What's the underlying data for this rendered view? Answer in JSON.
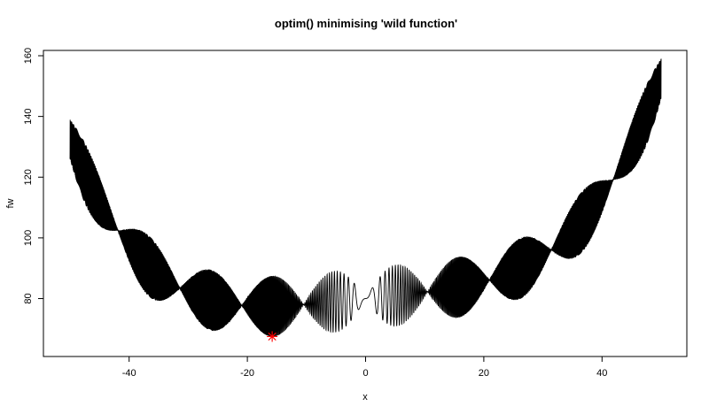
{
  "chart_data": {
    "type": "line",
    "title": "optim() minimising 'wild function'",
    "xlabel": "x",
    "ylabel": "fw",
    "xlim": [
      -50,
      50
    ],
    "ylim": [
      65,
      160
    ],
    "x_ticks": [
      -40,
      -20,
      0,
      20,
      40
    ],
    "y_ticks": [
      80,
      100,
      120,
      140,
      160
    ],
    "x_tick_labels": [
      "-40",
      "-20",
      "0",
      "20",
      "40"
    ],
    "y_tick_labels": [
      "80",
      "100",
      "120",
      "140",
      "160"
    ],
    "grid": false,
    "legend": "none",
    "series": [
      {
        "function": "fw(x) = 10*sin(0.3*x)*sin(1.3*x^2) + 0.00001*x^4 + 0.2*x + 80",
        "x_range": [
          -50,
          50
        ],
        "color": "#000000"
      }
    ],
    "minimum_marker": {
      "x": -15.8,
      "y": 67.5,
      "symbol": "asterisk",
      "color": "#ff0000"
    }
  }
}
